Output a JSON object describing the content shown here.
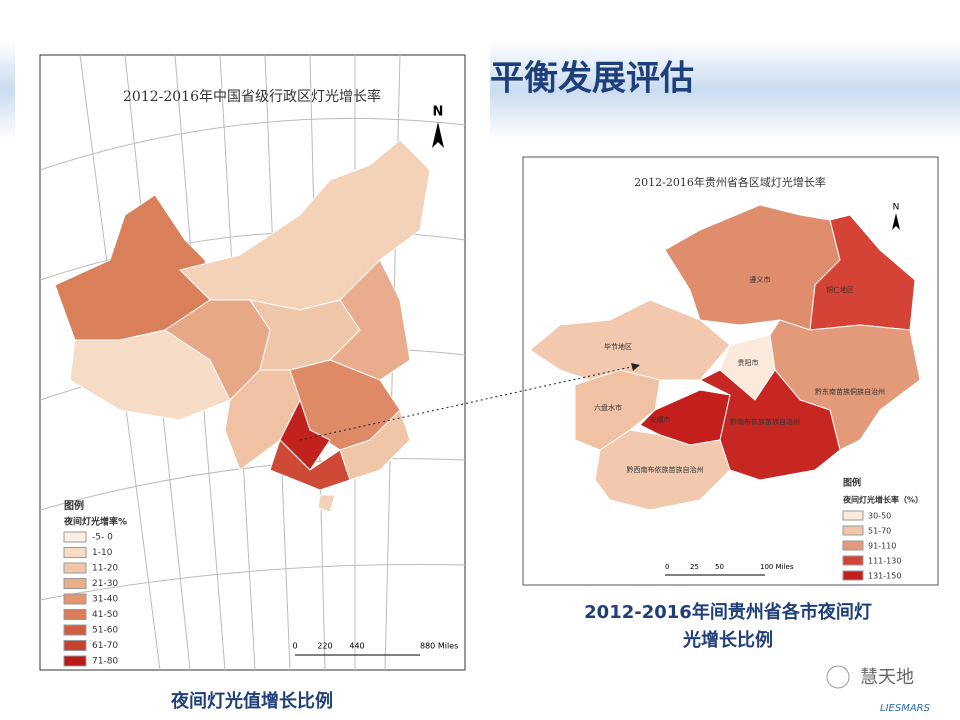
{
  "header": {
    "title": "平衡发展评估"
  },
  "left_map": {
    "title": "2012-2016年中国省级行政区灯光增长率",
    "north": "N",
    "legend": {
      "title": "图例",
      "subtitle": "夜间灯光增率%",
      "items": [
        "-5- 0",
        "1-10",
        "11-20",
        "21-30",
        "31-40",
        "41-50",
        "51-60",
        "61-70",
        "71-80"
      ]
    },
    "scale": [
      "0",
      "220",
      "440",
      "880 Miles"
    ],
    "caption": "夜间灯光值增长比例"
  },
  "right_map": {
    "title": "2012-2016年贵州省各区域灯光增长率",
    "north": "N",
    "regions": [
      "遵义市",
      "铜仁地区",
      "毕节地区",
      "贵阳市",
      "黔东南苗族侗族自治州",
      "六盘水市",
      "安顺市",
      "黔南布依族苗族自治州",
      "黔西南布依族苗族自治州"
    ],
    "legend": {
      "title": "图例",
      "subtitle": "夜间灯光增长率（%）",
      "items": [
        "30-50",
        "51-70",
        "91-110",
        "111-130",
        "131-150"
      ]
    },
    "scale": [
      "0",
      "25",
      "50",
      "100 Miles"
    ],
    "caption": [
      "2012-2016年间贵州省各市夜间灯",
      "光增长比例"
    ]
  },
  "logo": {
    "name": "慧天地",
    "org": "LIESMARS"
  }
}
